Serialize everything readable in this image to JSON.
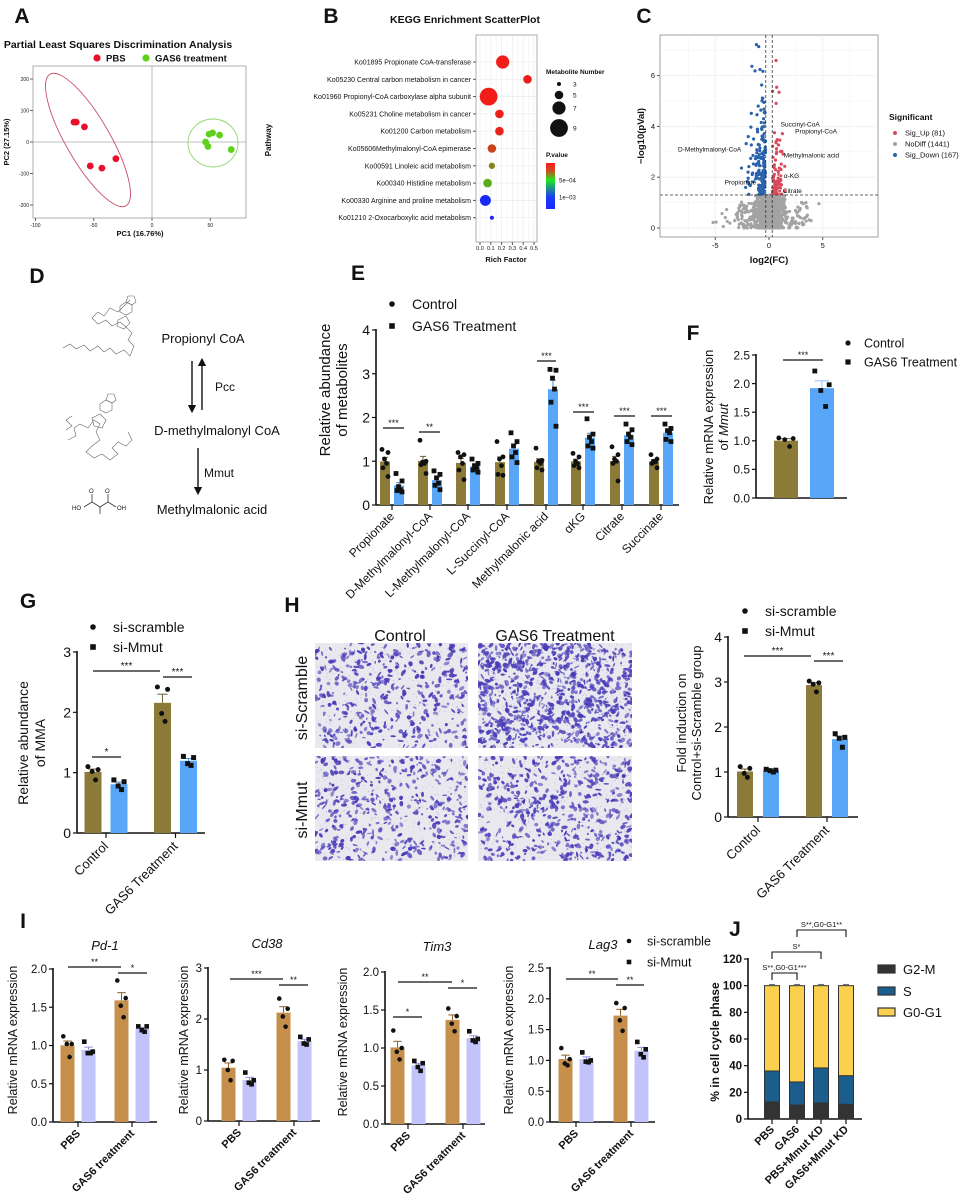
{
  "panel_labels": [
    "A",
    "B",
    "C",
    "D",
    "E",
    "F",
    "G",
    "H",
    "I",
    "J"
  ],
  "chart_data": [
    {
      "id": "A",
      "type": "scatter",
      "title": "Partial Least Squares Discrimination Analysis",
      "xlabel": "PC1 (16.76%)",
      "ylabel": "PC2 (27.15%)",
      "xlim": [
        -100,
        80
      ],
      "ylim": [
        -245,
        245
      ],
      "xtick_labels": [
        "-100",
        "-50",
        "0",
        "50"
      ],
      "ytick_labels": [
        "-200",
        "-100",
        "0",
        "100",
        "200"
      ],
      "series": [
        {
          "name": "PBS",
          "color": "#e8102a",
          "points": [
            [
              -67,
              63
            ],
            [
              -65,
              63
            ],
            [
              -58,
              48
            ],
            [
              -53,
              -76
            ],
            [
              -43,
              -83
            ],
            [
              -31,
              -53
            ]
          ]
        },
        {
          "name": "GAS6 treatment",
          "color": "#5fd11c",
          "points": [
            [
              49,
              25
            ],
            [
              52,
              29
            ],
            [
              58,
              22
            ],
            [
              46,
              0
            ],
            [
              48,
              -14
            ],
            [
              68,
              -24
            ]
          ]
        }
      ]
    },
    {
      "id": "B",
      "type": "scatter",
      "title": "KEGG Enrichment ScatterPlot",
      "xlabel": "Rich Factor",
      "ylabel": "Pathway",
      "xtick_labels": [
        "0.0",
        "0.1",
        "0.2",
        "0.3",
        "0.4",
        "0.5"
      ],
      "categories": [
        "Ko01895 Propionate CoA-transferase",
        "Ko05230 Central carbon metabolism in cancer",
        "Ko01960 Propionyl-CoA carboxylase alpha subunit",
        "Ko05231 Choline metabolism in cancer",
        "Ko01200 Carbon metabolism",
        "Ko05606Methylmalonyl-CoA epimerase",
        "Ko00591 Linoleic acid metabolism",
        "Ko00340 Histidine metabolism",
        "Ko00330 Arginine and proline metabolism",
        "Ko01210 2-Oxocarboxylic acid metabolism"
      ],
      "rich_factor": [
        0.21,
        0.44,
        0.08,
        0.18,
        0.18,
        0.11,
        0.11,
        0.07,
        0.05,
        0.11
      ],
      "metabolite_number": [
        7,
        5,
        9,
        5,
        5,
        5,
        4,
        5,
        6,
        3
      ],
      "p_value": [
        1e-05,
        1e-05,
        1e-05,
        2e-05,
        2e-05,
        0.0001,
        0.00025,
        0.00035,
        0.00105,
        0.001
      ],
      "size_legend_title": "Metabolite Number",
      "size_legend": [
        "3",
        "5",
        "7",
        "9"
      ],
      "color_legend_title": "P.value",
      "color_tick_labels": [
        "5e−04",
        "1e−03"
      ]
    },
    {
      "id": "C",
      "type": "scatter",
      "xlabel": "log2(FC)",
      "ylabel": "−log10(pVal)",
      "xtick_labels": [
        "-5",
        "0",
        "5"
      ],
      "ytick_labels": [
        "0",
        "2",
        "4",
        "6"
      ],
      "thresholds": {
        "log2fc": 0.3,
        "neglog10p": 1.3
      },
      "legend_title": "Significant",
      "groups": [
        {
          "name": "Sig_Up (81)",
          "count": 81,
          "color": "#d9495b"
        },
        {
          "name": "NoDiff (1441)",
          "count": 1441,
          "color": "#a3a3a3"
        },
        {
          "name": "Sig_Down (167)",
          "count": 167,
          "color": "#2b63ab"
        }
      ],
      "labeled_points": [
        {
          "label": "D-Methylmalonyl-CoA",
          "log2fc": -2.3,
          "neglog10p": 3.1
        },
        {
          "label": "Succinyl-CoA",
          "log2fc": 0.9,
          "neglog10p": 3.95
        },
        {
          "label": "Propionyl-CoA",
          "log2fc": 1.5,
          "neglog10p": 3.8
        },
        {
          "label": "Methylmalonic acid",
          "log2fc": 1.0,
          "neglog10p": 2.85
        },
        {
          "label": "α-KG",
          "log2fc": 1.1,
          "neglog10p": 2.05
        },
        {
          "label": "Propionate",
          "log2fc": -1.2,
          "neglog10p": 1.8
        },
        {
          "label": "Citrate",
          "log2fc": 1.0,
          "neglog10p": 1.45
        }
      ]
    },
    {
      "id": "E",
      "type": "bar",
      "ylabel": [
        "Relative abundance",
        "of metabolites"
      ],
      "ylim": [
        0,
        4
      ],
      "ytick_labels": [
        "0",
        "1",
        "2",
        "3",
        "4"
      ],
      "categories": [
        "Propionate",
        "D-Methylmalonyl-CoA",
        "L-Methylmalonyl-CoA",
        "L-Succinyl-CoA",
        "Methylmalonic acid",
        "αKG",
        "Citrate",
        "Succinate"
      ],
      "series": [
        {
          "name": "Control",
          "marker": "circle",
          "color": "#8b7a38",
          "points": [
            [
              1.27,
              1.2,
              1.05,
              0.95,
              0.85,
              0.65
            ],
            [
              1.48,
              1.0,
              0.98,
              0.95,
              0.92,
              0.72
            ],
            [
              1.2,
              1.15,
              1.1,
              0.95,
              0.8,
              0.58
            ],
            [
              1.45,
              1.1,
              1.05,
              0.9,
              0.7,
              0.68
            ],
            [
              1.3,
              1.02,
              1.0,
              0.95,
              0.85,
              0.8
            ],
            [
              1.18,
              1.1,
              1.0,
              0.95,
              0.9,
              0.85
            ],
            [
              1.33,
              1.15,
              1.05,
              1.0,
              0.95,
              0.55
            ],
            [
              1.15,
              1.05,
              1.0,
              0.98,
              0.95,
              0.85
            ]
          ]
        },
        {
          "name": "GAS6 Treatment",
          "marker": "square",
          "color": "#58a6f8",
          "points": [
            [
              0.72,
              0.55,
              0.42,
              0.35,
              0.33,
              0.3
            ],
            [
              0.78,
              0.7,
              0.62,
              0.5,
              0.45,
              0.35
            ],
            [
              1.05,
              0.95,
              0.9,
              0.85,
              0.8,
              0.75
            ],
            [
              1.65,
              1.45,
              1.35,
              1.2,
              1.1,
              0.97
            ],
            [
              3.1,
              3.08,
              2.9,
              2.65,
              2.35,
              1.8
            ],
            [
              1.97,
              1.62,
              1.55,
              1.45,
              1.35,
              1.3
            ],
            [
              1.85,
              1.72,
              1.62,
              1.55,
              1.45,
              1.38
            ],
            [
              1.85,
              1.75,
              1.7,
              1.65,
              1.5,
              1.45
            ]
          ]
        }
      ],
      "significance": [
        {
          "between": "Propionate",
          "label": "***"
        },
        {
          "between": "D-Methylmalonyl-CoA",
          "label": "**"
        },
        {
          "between": "Methylmalonic acid",
          "label": "***"
        },
        {
          "between": "αKG",
          "label": "***"
        },
        {
          "between": "Citrate",
          "label": "***"
        },
        {
          "between": "Succinate",
          "label": "***"
        }
      ]
    },
    {
      "id": "F",
      "type": "bar",
      "ylabel": [
        "Relative mRNA expression",
        "of ",
        "Mmut"
      ],
      "ylim": [
        0,
        2.5
      ],
      "ytick_labels": [
        "0.0",
        "0.5",
        "1.0",
        "1.5",
        "2.0",
        "2.5"
      ],
      "series": [
        {
          "name": "Control",
          "marker": "circle",
          "color": "#8b7a38",
          "points": [
            [
              1.05,
              1.04,
              1.02,
              0.9
            ]
          ]
        },
        {
          "name": "GAS6 Treatment",
          "marker": "square",
          "color": "#58a6f8",
          "points": [
            [
              2.22,
              1.98,
              1.88,
              1.6
            ]
          ]
        }
      ],
      "significance": [
        {
          "between": "Control vs GAS6 Treatment",
          "label": "***"
        }
      ]
    },
    {
      "id": "G",
      "type": "bar",
      "ylabel": [
        "Relative abundance",
        "of MMA"
      ],
      "ylim": [
        0,
        3
      ],
      "ytick_labels": [
        "0",
        "1",
        "2",
        "3"
      ],
      "categories": [
        "Control",
        "GAS6 Treatment"
      ],
      "series": [
        {
          "name": "si-scramble",
          "marker": "circle",
          "color": "#8b7a38",
          "points": [
            [
              1.1,
              1.05,
              1.02,
              0.88
            ],
            [
              2.42,
              2.38,
              1.98,
              1.85
            ]
          ]
        },
        {
          "name": "si-Mmut",
          "marker": "square",
          "color": "#58a6f8",
          "points": [
            [
              0.88,
              0.85,
              0.78,
              0.72
            ],
            [
              1.27,
              1.25,
              1.15,
              1.12
            ]
          ]
        }
      ],
      "significance": [
        {
          "between": "Control si-scramble vs si-Mmut",
          "label": "*"
        },
        {
          "between": "Control vs GAS6 (si-scramble)",
          "label": "***"
        },
        {
          "between": "GAS6 si-scramble vs si-Mmut",
          "label": "***"
        }
      ]
    },
    {
      "id": "H",
      "type": "bar",
      "ylabel": [
        "Fold induction on",
        "Control+si-Scramble group"
      ],
      "ylim": [
        0,
        4
      ],
      "ytick_labels": [
        "0",
        "1",
        "2",
        "3",
        "4"
      ],
      "categories": [
        "Control",
        "GAS6 Treatment"
      ],
      "series": [
        {
          "name": "si-scramble",
          "marker": "circle",
          "color": "#8b7a38",
          "points": [
            [
              1.12,
              1.08,
              0.97,
              0.88
            ],
            [
              3.02,
              2.98,
              2.95,
              2.78
            ]
          ]
        },
        {
          "name": "si-Mmut",
          "marker": "square",
          "color": "#58a6f8",
          "points": [
            [
              1.06,
              1.04,
              1.03,
              1.0
            ],
            [
              1.85,
              1.77,
              1.75,
              1.55
            ]
          ]
        }
      ],
      "significance": [
        {
          "between": "Control vs GAS6 (si-scramble)",
          "label": "***"
        },
        {
          "between": "GAS6 si-scramble vs si-Mmut",
          "label": "***"
        }
      ]
    },
    {
      "id": "I-Pd-1",
      "type": "bar",
      "title": "Pd-1",
      "ylabel": [
        "Relative mRNA expression"
      ],
      "ylim": [
        0,
        2
      ],
      "ytick_labels": [
        "0.0",
        "0.5",
        "1.0",
        "1.5",
        "2.0"
      ],
      "categories": [
        "PBS",
        "GAS6 treatment"
      ],
      "series": [
        {
          "name": "si-scramble",
          "marker": "circle",
          "color": "#c6904c",
          "points": [
            [
              1.12,
              1.02,
              1.02,
              0.85
            ],
            [
              1.85,
              1.62,
              1.52,
              1.37
            ]
          ]
        },
        {
          "name": "si-Mmut",
          "marker": "square",
          "color": "#c2c3fb",
          "points": [
            [
              1.05,
              0.92,
              0.9,
              0.9
            ],
            [
              1.25,
              1.25,
              1.2,
              1.18
            ]
          ]
        }
      ],
      "significance": [
        {
          "between": "PBS vs GAS6 (si-scramble)",
          "label": "**"
        },
        {
          "between": "GAS6 si-scramble vs si-Mmut",
          "label": "*"
        }
      ]
    },
    {
      "id": "I-Cd38",
      "type": "bar",
      "title": "Cd38",
      "ylabel": [
        "Relative mRNA expression"
      ],
      "ylim": [
        0,
        3
      ],
      "ytick_labels": [
        "0",
        "1",
        "2",
        "3"
      ],
      "categories": [
        "PBS",
        "GAS6 treatment"
      ],
      "series": [
        {
          "name": "si-scramble",
          "marker": "circle",
          "color": "#c6904c",
          "points": [
            [
              1.2,
              1.18,
              1.0,
              0.8
            ],
            [
              2.4,
              2.2,
              2.05,
              1.85
            ]
          ]
        },
        {
          "name": "si-Mmut",
          "marker": "square",
          "color": "#c2c3fb",
          "points": [
            [
              0.95,
              0.8,
              0.75,
              0.72
            ],
            [
              1.65,
              1.6,
              1.52,
              1.5
            ]
          ]
        }
      ],
      "significance": [
        {
          "between": "PBS vs GAS6 (si-scramble)",
          "label": "***"
        },
        {
          "between": "GAS6 si-scramble vs si-Mmut",
          "label": "**"
        }
      ]
    },
    {
      "id": "I-Tim3",
      "type": "bar",
      "title": "Tim3",
      "ylabel": [
        "Relative mRNA expression"
      ],
      "ylim": [
        0,
        2
      ],
      "ytick_labels": [
        "0.0",
        "0.5",
        "1.0",
        "1.5",
        "2.0"
      ],
      "categories": [
        "PBS",
        "GAS6 treatment"
      ],
      "series": [
        {
          "name": "si-scramble",
          "marker": "circle",
          "color": "#c6904c",
          "points": [
            [
              1.23,
              1.0,
              0.95,
              0.85
            ],
            [
              1.52,
              1.42,
              1.32,
              1.22
            ]
          ]
        },
        {
          "name": "si-Mmut",
          "marker": "square",
          "color": "#c2c3fb",
          "points": [
            [
              0.83,
              0.8,
              0.75,
              0.7
            ],
            [
              1.22,
              1.12,
              1.1,
              1.08
            ]
          ]
        }
      ],
      "significance": [
        {
          "between": "PBS si-scramble vs si-Mmut",
          "label": "*"
        },
        {
          "between": "PBS vs GAS6 (si-scramble)",
          "label": "**"
        },
        {
          "between": "GAS6 si-scramble vs si-Mmut",
          "label": "*"
        }
      ]
    },
    {
      "id": "I-Lag3",
      "type": "bar",
      "title": "Lag3",
      "ylabel": [
        "Relative mRNA expression"
      ],
      "ylim": [
        0,
        2.5
      ],
      "ytick_labels": [
        "0.0",
        "0.5",
        "1.0",
        "1.5",
        "2.0",
        "2.5"
      ],
      "categories": [
        "PBS",
        "GAS6 treatment"
      ],
      "series": [
        {
          "name": "si-scramble",
          "marker": "circle",
          "color": "#c6904c",
          "points": [
            [
              1.2,
              1.02,
              0.95,
              0.92
            ],
            [
              1.93,
              1.85,
              1.65,
              1.48
            ]
          ]
        },
        {
          "name": "si-Mmut",
          "marker": "square",
          "color": "#c2c3fb",
          "points": [
            [
              1.13,
              1.0,
              0.98,
              0.97
            ],
            [
              1.3,
              1.18,
              1.1,
              1.05
            ]
          ]
        }
      ],
      "significance": [
        {
          "between": "PBS vs GAS6 (si-scramble)",
          "label": "**"
        },
        {
          "between": "GAS6 si-scramble vs si-Mmut",
          "label": "**"
        }
      ]
    },
    {
      "id": "J",
      "type": "bar",
      "stacked": true,
      "ylabel": "% in cell cycle phase",
      "ylim": [
        0,
        120
      ],
      "ytick_labels": [
        "0",
        "20",
        "40",
        "60",
        "80",
        "100",
        "120"
      ],
      "categories": [
        "PBS",
        "GAS6",
        "PBS+Mmut KD",
        "GAS6+Mmut KD"
      ],
      "series": [
        {
          "name": "G2-M",
          "color": "#333333",
          "values": [
            12.8,
            10.5,
            12.0,
            11.0
          ]
        },
        {
          "name": "S",
          "color": "#1b5e8e",
          "values": [
            23.2,
            17.3,
            26.3,
            21.5
          ]
        },
        {
          "name": "G0-G1",
          "color": "#fbd04e",
          "values": [
            64.0,
            72.2,
            61.7,
            67.5
          ]
        }
      ],
      "significance": [
        {
          "between": "PBS vs GAS6",
          "label": "S**,G0-G1***"
        },
        {
          "between": "PBS vs PBS+Mmut KD",
          "label": "S*"
        },
        {
          "between": "GAS6 vs GAS6+Mmut KD",
          "label": "S**,G0-G1**"
        }
      ]
    }
  ],
  "pathway_diagram": {
    "compounds": [
      "Propionyl CoA",
      "D-methylmalonyl CoA",
      "Methylmalonic acid"
    ],
    "enzymes": [
      "Pcc",
      "Mmut"
    ],
    "enzyme_color": "#4f8a3c",
    "structure_labels": [
      "HO",
      "OH",
      "O",
      "O"
    ]
  },
  "transwell_images": {
    "columns": [
      "Control",
      "GAS6 Treatment"
    ],
    "rows": [
      "si-Scramble",
      "si-Mmut"
    ],
    "stain_color": "#4a3bb8"
  }
}
